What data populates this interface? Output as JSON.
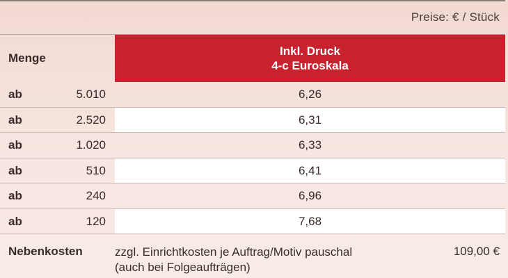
{
  "price_unit": "Preise: € / Stück",
  "columns": {
    "quantity_header": "Menge",
    "price_header_line1": "Inkl. Druck",
    "price_header_line2": "4-c Euroskala"
  },
  "accent_color": "#c8222e",
  "rows": [
    {
      "prefix": "ab",
      "quantity": "5.010",
      "price": "6,26"
    },
    {
      "prefix": "ab",
      "quantity": "2.520",
      "price": "6,31"
    },
    {
      "prefix": "ab",
      "quantity": "1.020",
      "price": "6,33"
    },
    {
      "prefix": "ab",
      "quantity": "510",
      "price": "6,41"
    },
    {
      "prefix": "ab",
      "quantity": "240",
      "price": "6,96"
    },
    {
      "prefix": "ab",
      "quantity": "120",
      "price": "7,68"
    }
  ],
  "nebenkosten": {
    "label": "Nebenkosten",
    "text_line1": "zzgl. Einrichtkosten je Auftrag/Motiv pauschal",
    "text_line2": "(auch bei Folgeaufträgen)",
    "price": "109,00 €"
  }
}
